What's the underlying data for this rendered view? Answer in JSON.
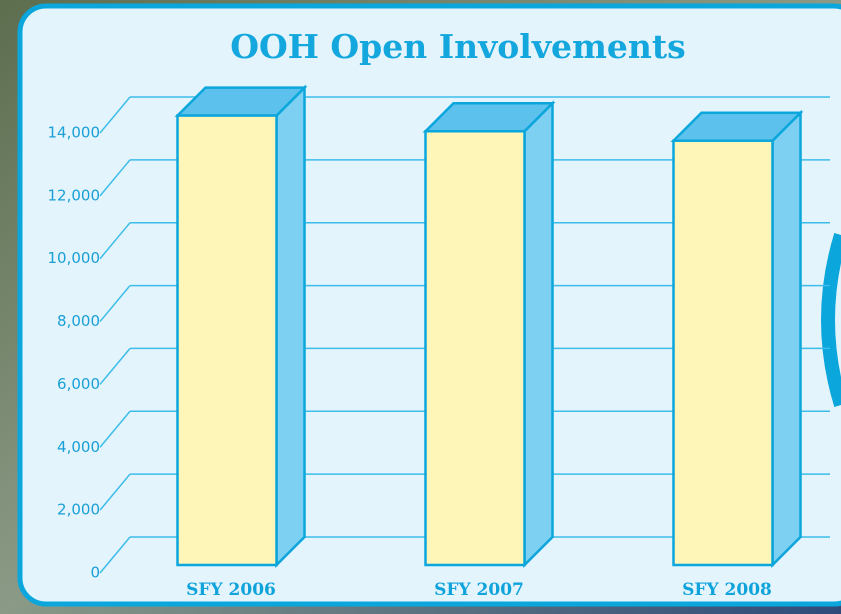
{
  "chart_data": {
    "type": "bar3d",
    "title": "OOH Open Involvements",
    "categories": [
      "SFY 2006",
      "SFY 2007",
      "SFY 2008"
    ],
    "values": [
      14300,
      13800,
      13500
    ],
    "color": "#fdf6b8",
    "side_color": "#7dd0f2",
    "edge_color": "#0aa6dc",
    "ylim": [
      0,
      14000
    ],
    "yticks": [
      0,
      {
        "value": 2000,
        "label": "2,000"
      },
      {
        "value": 4000,
        "label": "4,000"
      },
      {
        "value": 6000,
        "label": "6,000"
      },
      {
        "value": 8000,
        "label": "8,000"
      },
      {
        "value": 10000,
        "label": "10,000"
      },
      {
        "value": 12000,
        "label": "12,000"
      },
      {
        "value": 14000,
        "label": "14,000"
      }
    ],
    "grid": true
  }
}
